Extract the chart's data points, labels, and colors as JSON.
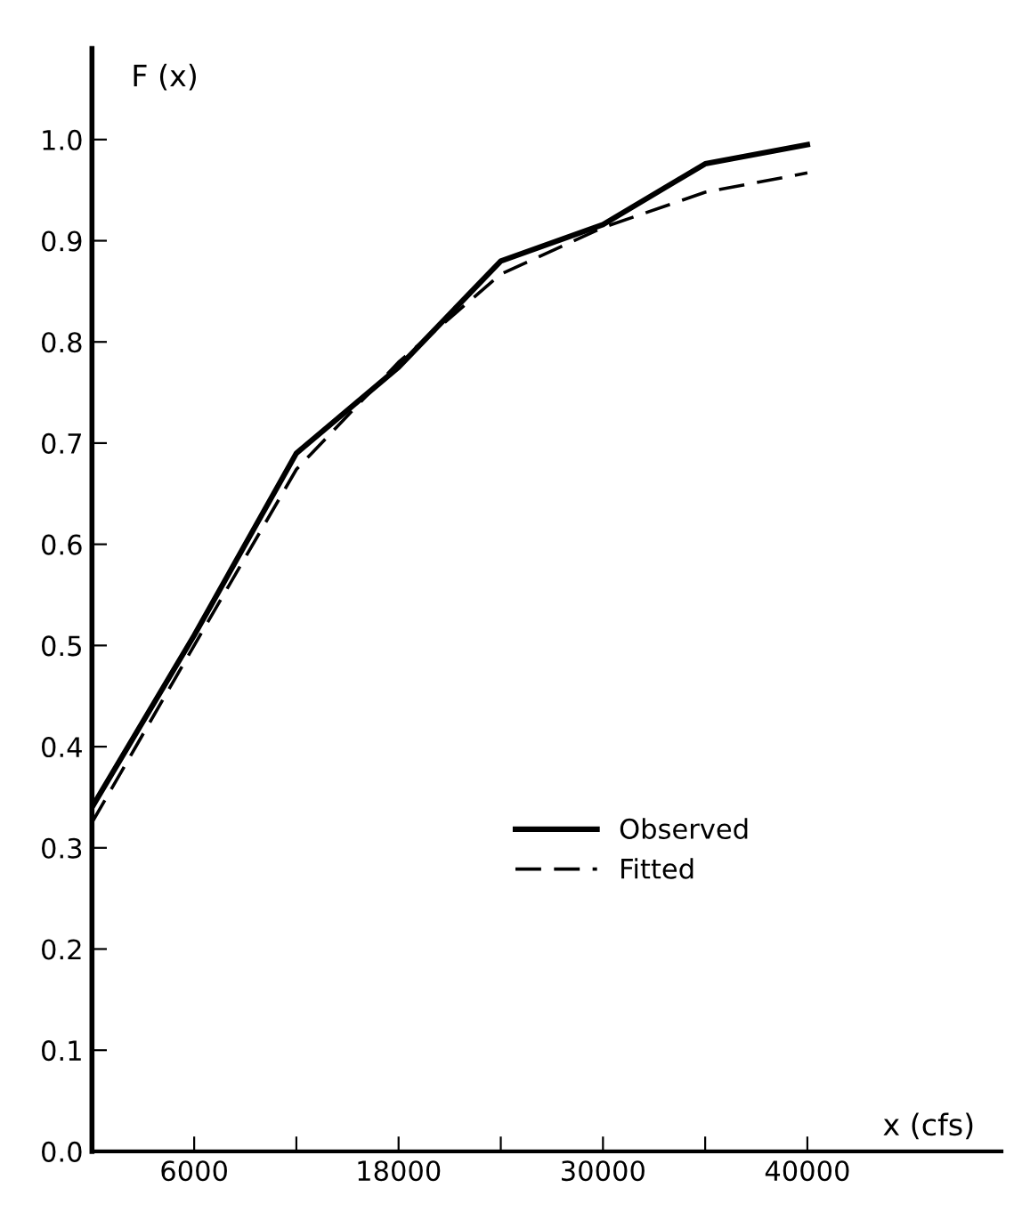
{
  "chart_data": {
    "type": "line",
    "xlabel": "x (cfs)",
    "ylabel": "F (x)",
    "categories": [
      null,
      "6000",
      null,
      "18000",
      null,
      "30000",
      null,
      "40000"
    ],
    "series": [
      {
        "name": "Observed",
        "color": "#000000",
        "line_style": "solid",
        "values": [
          0.34,
          0.51,
          0.69,
          0.775,
          0.88,
          0.916,
          0.976,
          0.995
        ]
      },
      {
        "name": "Fitted",
        "color": "#000000",
        "line_style": "dashed",
        "values": [
          0.325,
          0.5,
          0.674,
          0.78,
          0.867,
          0.913,
          0.948,
          0.967
        ]
      }
    ],
    "ylim": [
      0,
      1.09
    ],
    "yticks": [
      {
        "value": 0,
        "label": "0.0"
      },
      0.1,
      0.2,
      0.3,
      0.4,
      0.5,
      0.6,
      0.7,
      0.8,
      0.9,
      {
        "value": 1,
        "label": "1.0"
      }
    ],
    "grid": false,
    "legend": "lower right",
    "marker": "none"
  }
}
